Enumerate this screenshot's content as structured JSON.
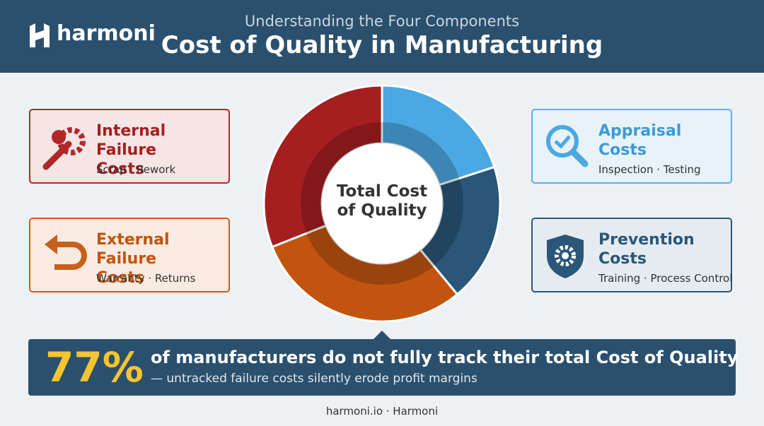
{
  "header": {
    "logo": "harmoni",
    "subtitle": "Understanding the Four Components",
    "title": "Cost of Quality in Manufacturing"
  },
  "chart_data": {
    "type": "donut",
    "center_label": "Total Cost of Quality",
    "categories": [
      "Appraisal Costs",
      "Prevention Costs",
      "External Failure Costs",
      "Internal Failure Costs"
    ],
    "details": [
      "Inspection · Testing",
      "Training · Process Control",
      "Warranty · Returns",
      "Scrap · Rework"
    ],
    "values": [
      20,
      19,
      30,
      31
    ],
    "colors": [
      "#4aa8e2",
      "#2a5778",
      "#c2540f",
      "#a51f20"
    ]
  },
  "stat": {
    "value": "77%",
    "headline": "of manufacturers do not fully track their total Cost of Quality",
    "subline": "— untracked failure costs silently erode profit margins"
  },
  "footer": "harmoni.io · Harmoni"
}
